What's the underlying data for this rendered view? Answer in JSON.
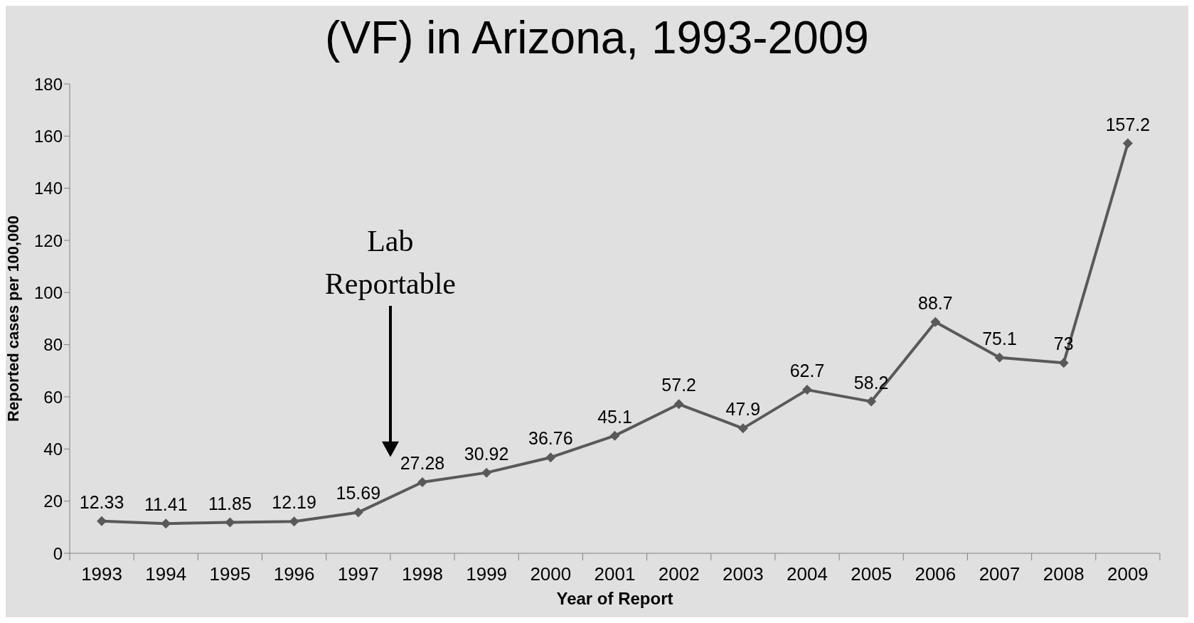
{
  "chart_data": {
    "type": "line",
    "title": "(VF) in Arizona, 1993-2009",
    "xlabel": "Year of Report",
    "ylabel": "Reported cases per 100,000",
    "categories": [
      "1993",
      "1994",
      "1995",
      "1996",
      "1997",
      "1998",
      "1999",
      "2000",
      "2001",
      "2002",
      "2003",
      "2004",
      "2005",
      "2006",
      "2007",
      "2008",
      "2009"
    ],
    "series": [
      {
        "color": "#595959",
        "values": [
          12.33,
          11.41,
          11.85,
          12.19,
          15.69,
          27.28,
          30.92,
          36.76,
          45.1,
          57.2,
          47.9,
          62.7,
          58.2,
          88.7,
          75.1,
          73,
          157.2
        ]
      }
    ],
    "ylim": [
      0,
      180
    ],
    "yticks": [
      0,
      20,
      40,
      60,
      80,
      100,
      120,
      140,
      160,
      180
    ],
    "grid": false,
    "legend": false,
    "marker": "diamond",
    "line_style": "solid",
    "data_labels": true,
    "annotations": [
      "Lab Reportable"
    ]
  }
}
